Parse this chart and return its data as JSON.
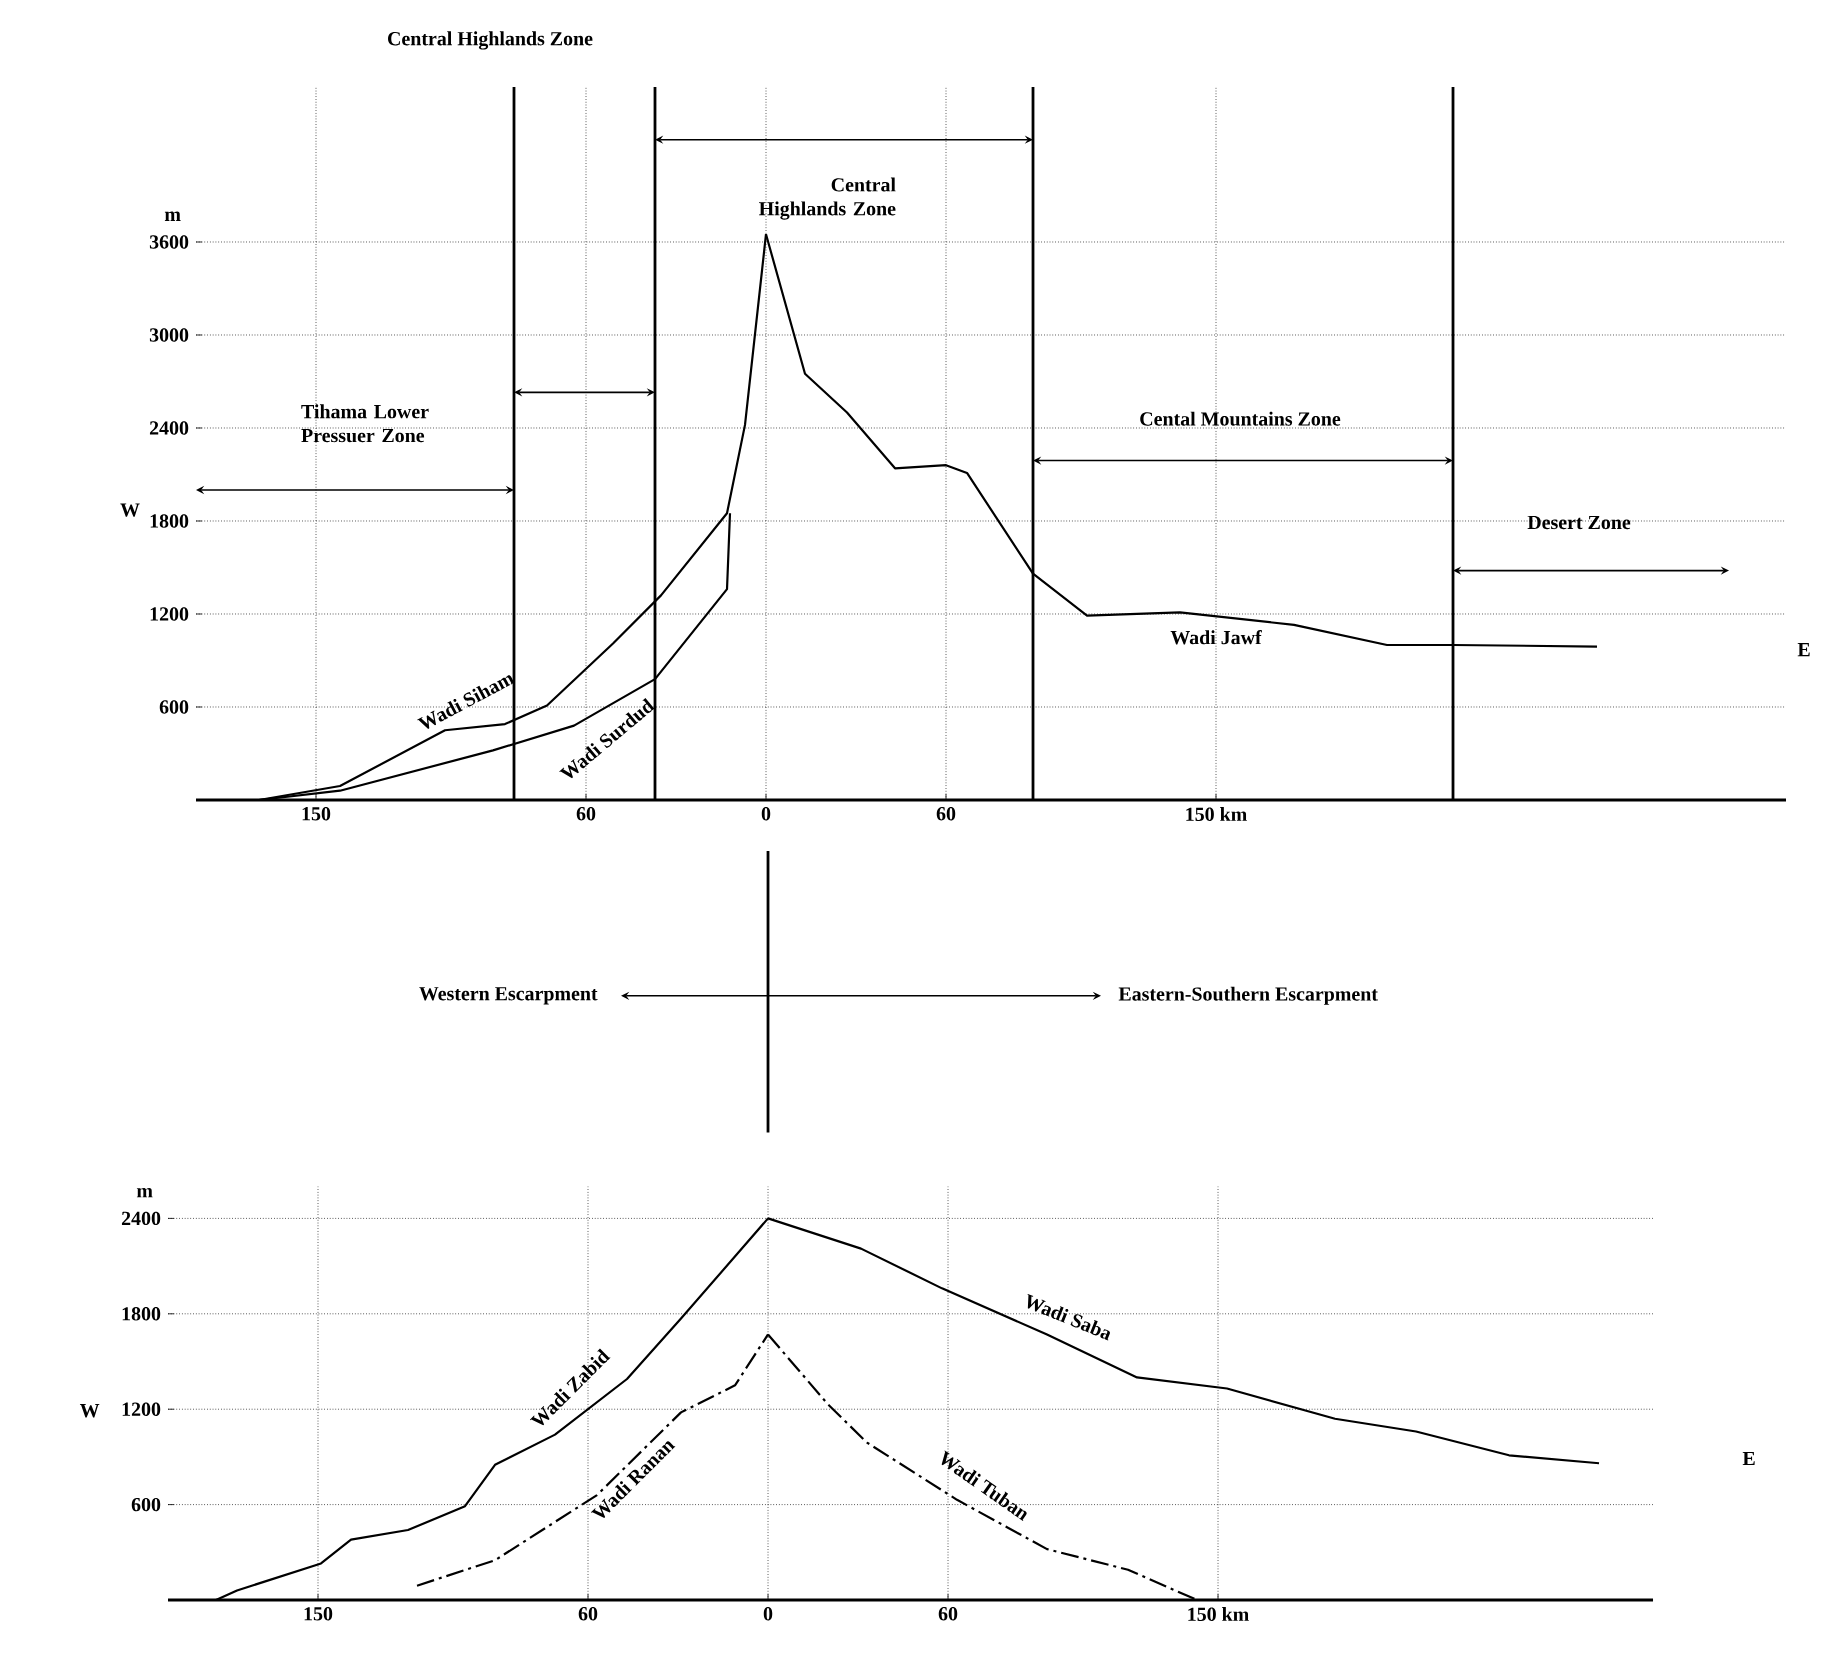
{
  "chart_data": [
    {
      "type": "line",
      "title": "Central Highlands Zone",
      "ylabel": "m",
      "xlim": [
        -190,
        340
      ],
      "ylim": [
        0,
        4600
      ],
      "xticks": [
        {
          "value": -150,
          "label": "150"
        },
        {
          "value": -60,
          "label": "60"
        },
        0,
        60,
        {
          "value": 150,
          "label": "150 km"
        }
      ],
      "yticks": [
        600,
        1200,
        1800,
        2400,
        3000,
        3600
      ],
      "grid": true,
      "ref_lines": [
        {
          "axis": "x",
          "value": -84
        },
        {
          "axis": "x",
          "value": -37
        },
        {
          "axis": "x",
          "value": 89
        },
        {
          "axis": "x",
          "value": 229
        }
      ],
      "annotations": [
        "Central Highlands Zone",
        "Tihama Lower Pressuer Zone",
        "Cental Mountains Zone",
        "Desert Zone",
        "W",
        "E"
      ],
      "series": [
        {
          "name": "Wadi Siham",
          "color": "#000000",
          "line_style": "solid",
          "x": [
            -169,
            -142,
            -107,
            -87,
            -73,
            -51,
            -35,
            -13,
            -7,
            0
          ],
          "values": [
            0,
            90,
            450,
            490,
            610,
            1010,
            1320,
            1850,
            2420,
            3650
          ]
        },
        {
          "name": "Wadi Surdud",
          "color": "#000000",
          "line_style": "solid",
          "x": [
            -169,
            -142,
            -91,
            -64,
            -37,
            -13,
            -12
          ],
          "values": [
            0,
            60,
            320,
            480,
            780,
            1360,
            1850
          ]
        },
        {
          "name": "Wadi Jawf",
          "color": "#000000",
          "line_style": "solid",
          "x": [
            0,
            13,
            27,
            43,
            60,
            67,
            89,
            107,
            138,
            176,
            207,
            229,
            277
          ],
          "values": [
            3650,
            2750,
            2500,
            2140,
            2160,
            2110,
            1460,
            1190,
            1210,
            1130,
            1000,
            1000,
            990
          ]
        }
      ]
    },
    {
      "type": "line",
      "ylabel": "m",
      "xlim": [
        -200,
        295
      ],
      "ylim": [
        0,
        2600
      ],
      "xticks": [
        {
          "value": -150,
          "label": "150"
        },
        {
          "value": -60,
          "label": "60"
        },
        0,
        60,
        {
          "value": 150,
          "label": "150 km"
        }
      ],
      "yticks": [
        600,
        1200,
        1800,
        2400
      ],
      "grid": true,
      "annotations": [
        "Western Escarpment",
        "Eastern-Southern Escarpment",
        "W",
        "E"
      ],
      "series": [
        {
          "name": "Wadi Zabid",
          "color": "#000000",
          "line_style": "solid",
          "x": [
            -184,
            -177,
            -149,
            -139,
            -120,
            -101,
            -91,
            -71,
            -47,
            -29,
            0
          ],
          "values": [
            0,
            60,
            230,
            380,
            440,
            590,
            850,
            1040,
            1390,
            1770,
            2400
          ]
        },
        {
          "name": "Wadi Saba",
          "color": "#000000",
          "line_style": "solid",
          "x": [
            0,
            31,
            58,
            93,
            123,
            153,
            189,
            216,
            247,
            277
          ],
          "values": [
            2400,
            2210,
            1960,
            1670,
            1400,
            1330,
            1140,
            1060,
            910,
            860
          ]
        },
        {
          "name": "Wadi Ranan",
          "color": "#000000",
          "line_style": "dashed",
          "x": [
            -117,
            -91,
            -57,
            -29,
            -11,
            0
          ],
          "values": [
            90,
            250,
            660,
            1180,
            1350,
            1670
          ]
        },
        {
          "name": "Wadi Tuban",
          "color": "#000000",
          "line_style": "dashed",
          "x": [
            0,
            20,
            33,
            63,
            93,
            120,
            143
          ],
          "values": [
            1670,
            1230,
            990,
            630,
            320,
            190,
            0
          ]
        }
      ]
    }
  ]
}
